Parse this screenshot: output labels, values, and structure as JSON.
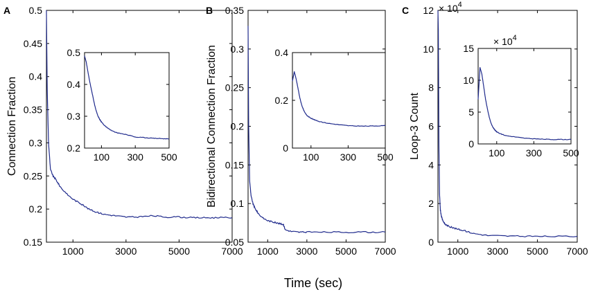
{
  "figure": {
    "xlabel": "Time (sec)"
  },
  "chart_data": [
    {
      "type": "line",
      "panel_label": "A",
      "ylabel": "Connection Fraction",
      "xlim": [
        0,
        7000
      ],
      "ylim": [
        0.15,
        0.5
      ],
      "xticks": [
        "1000",
        "3000",
        "5000",
        "7000"
      ],
      "yticks": [
        "0.15",
        "0.2",
        "0.25",
        "0.3",
        "0.35",
        "0.4",
        "0.45",
        "0.5"
      ],
      "series": [
        {
          "name": "main",
          "x": [
            0,
            30,
            80,
            150,
            250,
            350,
            500,
            700,
            1000,
            1300,
            1600,
            1900,
            2200,
            2600,
            3000,
            3500,
            4000,
            4500,
            5000,
            5500,
            6000,
            6500,
            7000
          ],
          "y": [
            0.5,
            0.38,
            0.3,
            0.26,
            0.25,
            0.245,
            0.235,
            0.225,
            0.215,
            0.208,
            0.2,
            0.195,
            0.192,
            0.19,
            0.188,
            0.188,
            0.19,
            0.188,
            0.188,
            0.187,
            0.187,
            0.187,
            0.187
          ]
        }
      ],
      "inset": {
        "xlim": [
          0,
          500
        ],
        "ylim": [
          0.2,
          0.5
        ],
        "xticks": [
          "100",
          "300",
          "500"
        ],
        "yticks": [
          "0.2",
          "0.3",
          "0.4",
          "0.5"
        ],
        "series": [
          {
            "name": "inset",
            "x": [
              0,
              10,
              20,
              30,
              40,
              50,
              60,
              70,
              80,
              90,
              100,
              120,
              140,
              160,
              180,
              200,
              250,
              300,
              350,
              400,
              450,
              500
            ],
            "y": [
              0.49,
              0.47,
              0.44,
              0.41,
              0.385,
              0.36,
              0.335,
              0.315,
              0.3,
              0.29,
              0.282,
              0.27,
              0.262,
              0.255,
              0.25,
              0.247,
              0.242,
              0.235,
              0.233,
              0.231,
              0.23,
              0.229
            ]
          }
        ]
      }
    },
    {
      "type": "line",
      "panel_label": "B",
      "ylabel": "Bidirectional Connection Fraction",
      "xlim": [
        0,
        7000
      ],
      "ylim": [
        0.05,
        0.35
      ],
      "xticks": [
        "1000",
        "3000",
        "5000",
        "7000"
      ],
      "yticks": [
        "0.05",
        "0.1",
        "0.15",
        "0.2",
        "0.25",
        "0.3",
        "0.35"
      ],
      "series": [
        {
          "name": "main",
          "x": [
            0,
            30,
            80,
            150,
            250,
            350,
            500,
            700,
            1000,
            1300,
            1600,
            1800,
            1900,
            2200,
            2600,
            3000,
            4000,
            5000,
            6000,
            7000
          ],
          "y": [
            0.33,
            0.2,
            0.13,
            0.11,
            0.1,
            0.094,
            0.088,
            0.082,
            0.078,
            0.076,
            0.074,
            0.073,
            0.066,
            0.064,
            0.063,
            0.063,
            0.063,
            0.063,
            0.063,
            0.063
          ]
        }
      ],
      "inset": {
        "xlim": [
          0,
          500
        ],
        "ylim": [
          0,
          0.4
        ],
        "xticks": [
          "100",
          "300",
          "500"
        ],
        "yticks": [
          "0",
          "0.2",
          "0.4"
        ],
        "series": [
          {
            "name": "inset",
            "x": [
              0,
              10,
              20,
              30,
              40,
              50,
              60,
              70,
              80,
              100,
              120,
              150,
              200,
              250,
              300,
              350,
              400,
              450,
              500
            ],
            "y": [
              0.28,
              0.32,
              0.29,
              0.25,
              0.21,
              0.18,
              0.16,
              0.145,
              0.135,
              0.125,
              0.118,
              0.11,
              0.103,
              0.098,
              0.094,
              0.092,
              0.092,
              0.093,
              0.094
            ]
          }
        ]
      }
    },
    {
      "type": "line",
      "panel_label": "C",
      "ylabel": "Loop-3 Count",
      "exponent_label": "× 10",
      "exponent_power": "4",
      "xlim": [
        0,
        7000
      ],
      "ylim": [
        0,
        12
      ],
      "xticks": [
        "1000",
        "3000",
        "5000",
        "7000"
      ],
      "yticks": [
        "0",
        "2",
        "4",
        "6",
        "8",
        "10",
        "12"
      ],
      "series": [
        {
          "name": "main",
          "x": [
            0,
            20,
            50,
            80,
            120,
            160,
            220,
            300,
            400,
            600,
            900,
            1300,
            1800,
            2500,
            3500,
            4500,
            5500,
            7000
          ],
          "y": [
            12,
            11,
            5,
            2.5,
            1.7,
            1.4,
            1.2,
            1.0,
            0.9,
            0.8,
            0.7,
            0.6,
            0.45,
            0.35,
            0.32,
            0.3,
            0.3,
            0.3
          ]
        }
      ],
      "inset": {
        "xlim": [
          0,
          500
        ],
        "ylim": [
          0,
          15
        ],
        "xticks": [
          "100",
          "300",
          "500"
        ],
        "yticks": [
          "0",
          "5",
          "10",
          "15"
        ],
        "exponent_label": "× 10",
        "exponent_power": "4",
        "series": [
          {
            "name": "inset",
            "x": [
              0,
              10,
              20,
              30,
              40,
              50,
              60,
              70,
              80,
              90,
              100,
              120,
              150,
              200,
              250,
              300,
              350,
              400,
              450,
              500
            ],
            "y": [
              7,
              12,
              11,
              9,
              7,
              5.5,
              4.2,
              3.2,
              2.6,
              2.2,
              1.9,
              1.6,
              1.3,
              1.1,
              0.9,
              0.8,
              0.75,
              0.7,
              0.7,
              0.7
            ]
          }
        ]
      }
    }
  ]
}
